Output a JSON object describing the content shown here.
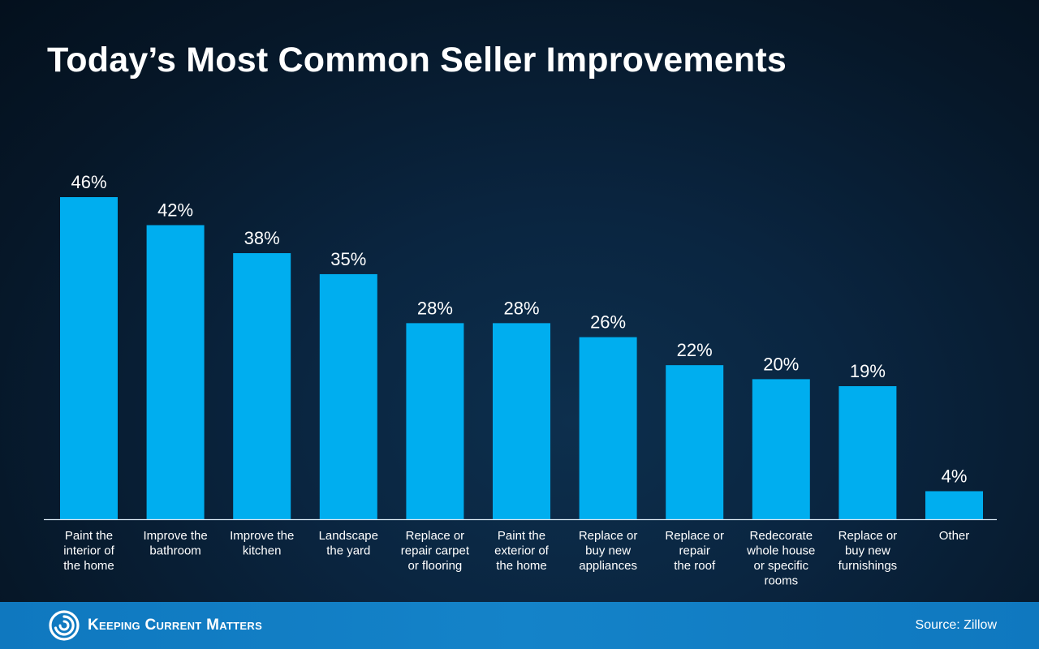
{
  "chart_data": {
    "type": "bar",
    "title": "Today’s Most Common Seller Improvements",
    "categories": [
      "Paint the interior of the home",
      "Improve the bathroom",
      "Improve the kitchen",
      "Landscape the yard",
      "Replace or repair carpet or flooring",
      "Paint the exterior of the home",
      "Replace or buy new appliances",
      "Replace or repair the roof",
      "Redecorate whole house or specific rooms",
      "Replace or buy new furnishings",
      "Other"
    ],
    "category_lines": [
      [
        "Paint the",
        "interior of",
        "the home"
      ],
      [
        "Improve the",
        "bathroom"
      ],
      [
        "Improve the",
        "kitchen"
      ],
      [
        "Landscape",
        "the yard"
      ],
      [
        "Replace or",
        "repair carpet",
        "or flooring"
      ],
      [
        "Paint the",
        "exterior of",
        "the home"
      ],
      [
        "Replace or",
        "buy new",
        "appliances"
      ],
      [
        "Replace or",
        "repair",
        "the roof"
      ],
      [
        "Redecorate",
        "whole house",
        "or specific",
        "rooms"
      ],
      [
        "Replace or",
        "buy new",
        "furnishings"
      ],
      [
        "Other"
      ]
    ],
    "values": [
      46,
      42,
      38,
      35,
      28,
      28,
      26,
      22,
      20,
      19,
      4
    ],
    "data_labels": [
      "46%",
      "42%",
      "38%",
      "35%",
      "28%",
      "28%",
      "26%",
      "22%",
      "20%",
      "19%",
      "4%"
    ],
    "unit": "%",
    "xlabel": "",
    "ylabel": "",
    "ylim": [
      0,
      46
    ],
    "grid": false,
    "legend": "none",
    "bar_color": "#00aeef"
  },
  "footer": {
    "brand": "Keeping Current Matters",
    "source": "Source: Zillow",
    "logo_icon": "kcm-swirl-icon"
  },
  "colors": {
    "background": "#0a2540",
    "footer_band": "#1480c6",
    "text": "#ffffff",
    "axis": "#d8e6f2"
  }
}
